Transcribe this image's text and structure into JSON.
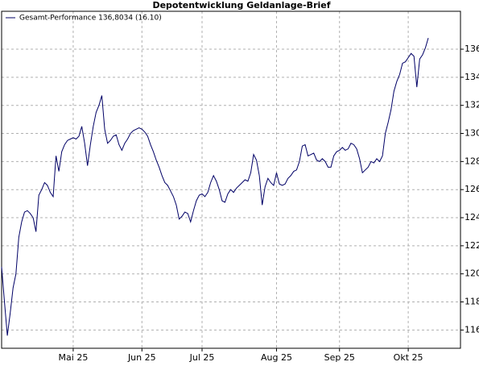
{
  "chart_data": {
    "type": "line",
    "title": "Depotentwicklung Geldanlage-Brief",
    "categories": [
      null,
      null,
      null,
      null,
      null,
      null,
      null,
      null,
      null,
      null,
      null,
      null,
      null,
      null,
      null,
      null,
      null,
      null,
      null,
      null,
      null,
      null,
      null,
      null,
      null,
      "Mai 25",
      null,
      null,
      null,
      null,
      null,
      null,
      null,
      null,
      null,
      null,
      null,
      null,
      null,
      null,
      null,
      null,
      null,
      null,
      null,
      null,
      null,
      null,
      null,
      "Jun 25",
      null,
      null,
      null,
      null,
      null,
      null,
      null,
      null,
      null,
      null,
      null,
      null,
      null,
      null,
      null,
      null,
      null,
      null,
      null,
      null,
      "Jul 25",
      null,
      null,
      null,
      null,
      null,
      null,
      null,
      null,
      null,
      null,
      null,
      null,
      null,
      null,
      null,
      null,
      null,
      null,
      null,
      null,
      null,
      null,
      null,
      null,
      null,
      "Aug 25",
      null,
      null,
      null,
      null,
      null,
      null,
      null,
      null,
      null,
      null,
      null,
      null,
      null,
      null,
      null,
      null,
      null,
      null,
      null,
      null,
      null,
      "Sep 25",
      null,
      null,
      null,
      null,
      null,
      null,
      null,
      null,
      null,
      null,
      null,
      null,
      null,
      null,
      null,
      null,
      null,
      null,
      null,
      null,
      null,
      null,
      null,
      "Okt 25",
      null,
      null,
      null,
      null,
      null,
      null,
      null
    ],
    "series": [
      {
        "name": "Gesamt-Performance 136,8034 (16.10)",
        "color": "#000066",
        "values": [
          120.5,
          118,
          115.6,
          117.2,
          119,
          120,
          122.6,
          123.7,
          124.4,
          124.5,
          124.3,
          124,
          123,
          125.6,
          126,
          126.5,
          126.3,
          125.8,
          125.5,
          128.4,
          127.3,
          128.7,
          129.2,
          129.5,
          129.6,
          129.7,
          129.6,
          129.8,
          130.5,
          129.3,
          127.7,
          129.2,
          130.5,
          131.5,
          132,
          132.7,
          130.3,
          129.3,
          129.5,
          129.8,
          129.9,
          129.2,
          128.8,
          129.3,
          129.6,
          130,
          130.2,
          130.3,
          130.4,
          130.3,
          130.1,
          129.8,
          129.2,
          128.7,
          128.1,
          127.6,
          127,
          126.5,
          126.3,
          125.9,
          125.5,
          124.9,
          123.9,
          124.1,
          124.4,
          124.3,
          123.7,
          124.5,
          125.2,
          125.6,
          125.7,
          125.5,
          125.8,
          126.5,
          127,
          126.6,
          126,
          125.2,
          125.1,
          125.7,
          126,
          125.8,
          126.1,
          126.3,
          126.5,
          126.7,
          126.6,
          127.2,
          128.5,
          128.1,
          127,
          124.9,
          126.2,
          126.8,
          126.5,
          126.3,
          127.2,
          126.4,
          126.3,
          126.4,
          126.8,
          127,
          127.3,
          127.4,
          128,
          129.1,
          129.2,
          128.4,
          128.5,
          128.6,
          128.1,
          128,
          128.2,
          128,
          127.6,
          127.6,
          128.4,
          128.7,
          128.8,
          129,
          128.8,
          128.9,
          129.3,
          129.2,
          128.9,
          128.2,
          127.2,
          127.4,
          127.6,
          128,
          127.9,
          128.2,
          128,
          128.4,
          130,
          130.8,
          131.7,
          133,
          133.7,
          134.2,
          135,
          135.1,
          135.4,
          135.7,
          135.5,
          133.3,
          135.3,
          135.6,
          136.1,
          136.8
        ]
      }
    ],
    "ylim": [
      114.7,
      138.7
    ],
    "yticks": [
      116,
      118,
      120,
      122,
      124,
      126,
      128,
      130,
      132,
      134,
      136
    ],
    "grid": true
  }
}
